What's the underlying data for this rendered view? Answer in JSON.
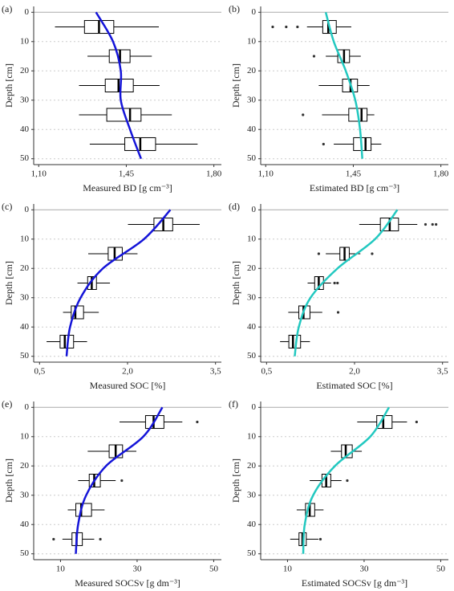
{
  "chart_data": [
    {
      "type": "boxplot",
      "label": "(a)",
      "xlabel": "Measured BD [g cm⁻³]",
      "ylabel": "Depth [cm]",
      "xlim": [
        1.08,
        1.83
      ],
      "xticks": [
        {
          "value": 1.1,
          "label": "1,10"
        },
        {
          "value": 1.45,
          "label": "1,45"
        },
        {
          "value": 1.8,
          "label": "1,80"
        }
      ],
      "ylim": [
        -2,
        52
      ],
      "yticks": [
        0,
        10,
        20,
        30,
        40,
        50
      ],
      "grid": true,
      "depths": [
        5,
        15,
        25,
        35,
        45
      ],
      "whisker_low": [
        1.165,
        1.295,
        1.261,
        1.261,
        1.304
      ],
      "q1": [
        1.283,
        1.382,
        1.366,
        1.372,
        1.444
      ],
      "median": [
        1.341,
        1.425,
        1.419,
        1.465,
        1.506
      ],
      "q3": [
        1.4,
        1.465,
        1.478,
        1.509,
        1.567
      ],
      "whisker_high": [
        1.58,
        1.552,
        1.583,
        1.632,
        1.735
      ],
      "outliers": [
        [],
        [],
        [],
        [],
        []
      ],
      "curve": {
        "color": "#1414d8",
        "depths": [
          0,
          10,
          20,
          30,
          40,
          50
        ],
        "values": [
          1.329,
          1.397,
          1.428,
          1.428,
          1.465,
          1.509
        ]
      }
    },
    {
      "type": "boxplot",
      "label": "(b)",
      "xlabel": "Estimated BD [g cm⁻³]",
      "ylabel": "Depth [cm]",
      "xlim": [
        1.08,
        1.83
      ],
      "xticks": [
        {
          "value": 1.1,
          "label": "1,10"
        },
        {
          "value": 1.45,
          "label": "1,45"
        },
        {
          "value": 1.8,
          "label": "1,80"
        }
      ],
      "ylim": [
        -2,
        52
      ],
      "yticks": [
        0,
        10,
        20,
        30,
        40,
        50
      ],
      "grid": true,
      "depths": [
        5,
        15,
        25,
        35,
        45
      ],
      "whisker_low": [
        1.265,
        1.34,
        1.312,
        1.325,
        1.372
      ],
      "q1": [
        1.328,
        1.388,
        1.407,
        1.432,
        1.451
      ],
      "median": [
        1.35,
        1.413,
        1.439,
        1.483,
        1.499
      ],
      "q3": [
        1.382,
        1.435,
        1.467,
        1.505,
        1.521
      ],
      "whisker_high": [
        1.442,
        1.48,
        1.515,
        1.534,
        1.562
      ],
      "outliers": [
        [
          1.128,
          1.182,
          1.227
        ],
        [
          1.293
        ],
        [],
        [
          1.249
        ],
        [
          1.331
        ]
      ],
      "curve": {
        "color": "#22c8c0",
        "depths": [
          0,
          10,
          20,
          30,
          40,
          50
        ],
        "values": [
          1.34,
          1.372,
          1.42,
          1.458,
          1.477,
          1.486
        ]
      }
    },
    {
      "type": "boxplot",
      "label": "(c)",
      "xlabel": "Measured SOC [%]",
      "ylabel": "Depth [cm]",
      "xlim": [
        0.4,
        3.6
      ],
      "xticks": [
        {
          "value": 0.5,
          "label": "0,5"
        },
        {
          "value": 2.0,
          "label": "2,0"
        },
        {
          "value": 3.5,
          "label": "3,5"
        }
      ],
      "ylim": [
        -2,
        52
      ],
      "yticks": [
        0,
        10,
        20,
        30,
        40,
        50
      ],
      "grid": true,
      "depths": [
        5,
        15,
        25,
        35,
        45
      ],
      "whisker_low": [
        2.007,
        1.33,
        1.146,
        0.9,
        0.62
      ],
      "q1": [
        2.45,
        1.67,
        1.32,
        1.04,
        0.85
      ],
      "median": [
        2.61,
        1.78,
        1.39,
        1.11,
        0.93
      ],
      "q3": [
        2.77,
        1.91,
        1.47,
        1.25,
        1.08
      ],
      "whisker_high": [
        3.23,
        2.17,
        1.7,
        1.51,
        1.31
      ],
      "outliers": [
        [],
        [],
        [],
        [],
        []
      ],
      "curve": {
        "color": "#1414d8",
        "depths": [
          0,
          10,
          20,
          30,
          40,
          50
        ],
        "values": [
          2.73,
          2.28,
          1.58,
          1.2,
          1.02,
          0.96
        ]
      }
    },
    {
      "type": "boxplot",
      "label": "(d)",
      "xlabel": "Estimated SOC [%]",
      "ylabel": "Depth [cm]",
      "xlim": [
        0.4,
        3.6
      ],
      "xticks": [
        {
          "value": 0.5,
          "label": "0,5"
        },
        {
          "value": 2.0,
          "label": "2,0"
        },
        {
          "value": 3.5,
          "label": "3,5"
        }
      ],
      "ylim": [
        -2,
        52
      ],
      "yticks": [
        0,
        10,
        20,
        30,
        40,
        50
      ],
      "grid": true,
      "depths": [
        5,
        15,
        25,
        35,
        45
      ],
      "whisker_low": [
        2.08,
        1.51,
        1.2,
        0.87,
        0.73
      ],
      "q1": [
        2.44,
        1.75,
        1.32,
        1.05,
        0.88
      ],
      "median": [
        2.6,
        1.83,
        1.39,
        1.13,
        0.95
      ],
      "q3": [
        2.75,
        1.91,
        1.47,
        1.24,
        1.08
      ],
      "whisker_high": [
        3.07,
        2.1,
        1.6,
        1.45,
        1.24
      ],
      "outliers": [
        [
          3.21,
          3.33,
          3.39
        ],
        [
          1.39,
          2.3
        ],
        [
          1.66,
          1.71
        ],
        [
          1.72
        ],
        []
      ],
      "curve": {
        "color": "#22c8c0",
        "depths": [
          0,
          10,
          20,
          30,
          40,
          50
        ],
        "values": [
          2.73,
          2.35,
          1.71,
          1.25,
          1.05,
          0.98
        ]
      }
    },
    {
      "type": "boxplot",
      "label": "(e)",
      "xlabel": "Measured SOCSv [g dm⁻³]",
      "ylabel": "Depth [cm]",
      "xlim": [
        3,
        52
      ],
      "xticks": [
        10,
        30,
        50
      ],
      "ylim": [
        -2,
        52
      ],
      "yticks": [
        0,
        10,
        20,
        30,
        40,
        50
      ],
      "grid": true,
      "depths": [
        5,
        15,
        25,
        35,
        45
      ],
      "whisker_low": [
        25.4,
        17.1,
        14.6,
        11.9,
        10.5
      ],
      "q1": [
        32.2,
        22.7,
        17.5,
        14,
        13
      ],
      "median": [
        34.3,
        24.4,
        18.8,
        15.4,
        14.2
      ],
      "q3": [
        37,
        26.2,
        20.4,
        18.1,
        15.7
      ],
      "whisker_high": [
        41.8,
        29.8,
        24.4,
        21.5,
        18.8
      ],
      "outliers": [
        [
          45.7
        ],
        [],
        [
          26
        ],
        [],
        [
          8.2,
          20.4
        ]
      ],
      "curve": {
        "color": "#1414d8",
        "depths": [
          0,
          10,
          20,
          30,
          40,
          50
        ],
        "values": [
          36.6,
          31.6,
          21.9,
          16.7,
          14.6,
          14
        ]
      }
    },
    {
      "type": "boxplot",
      "label": "(f)",
      "xlabel": "Estimated SOCSv [g dm⁻³]",
      "ylabel": "Depth [cm]",
      "xlim": [
        3,
        52
      ],
      "xticks": [
        10,
        30,
        50
      ],
      "ylim": [
        -2,
        52
      ],
      "yticks": [
        0,
        10,
        20,
        30,
        40,
        50
      ],
      "grid": true,
      "depths": [
        5,
        15,
        25,
        35,
        45
      ],
      "whisker_low": [
        28.2,
        21.3,
        15.8,
        12.4,
        10.7
      ],
      "q1": [
        33.3,
        24.1,
        19,
        14.7,
        13
      ],
      "median": [
        35,
        25.2,
        20.1,
        15.8,
        13.9
      ],
      "q3": [
        37.3,
        26.9,
        21.3,
        17.1,
        14.9
      ],
      "whisker_high": [
        41.2,
        29.4,
        24.1,
        19.4,
        18.1
      ],
      "outliers": [
        [
          43.7
        ],
        [],
        [
          25.6
        ],
        [],
        [
          18.6
        ]
      ],
      "curve": {
        "color": "#22c8c0",
        "depths": [
          0,
          10,
          20,
          30,
          40,
          50
        ],
        "values": [
          36.5,
          31.6,
          22.4,
          16.7,
          14.5,
          14.1
        ]
      }
    }
  ]
}
